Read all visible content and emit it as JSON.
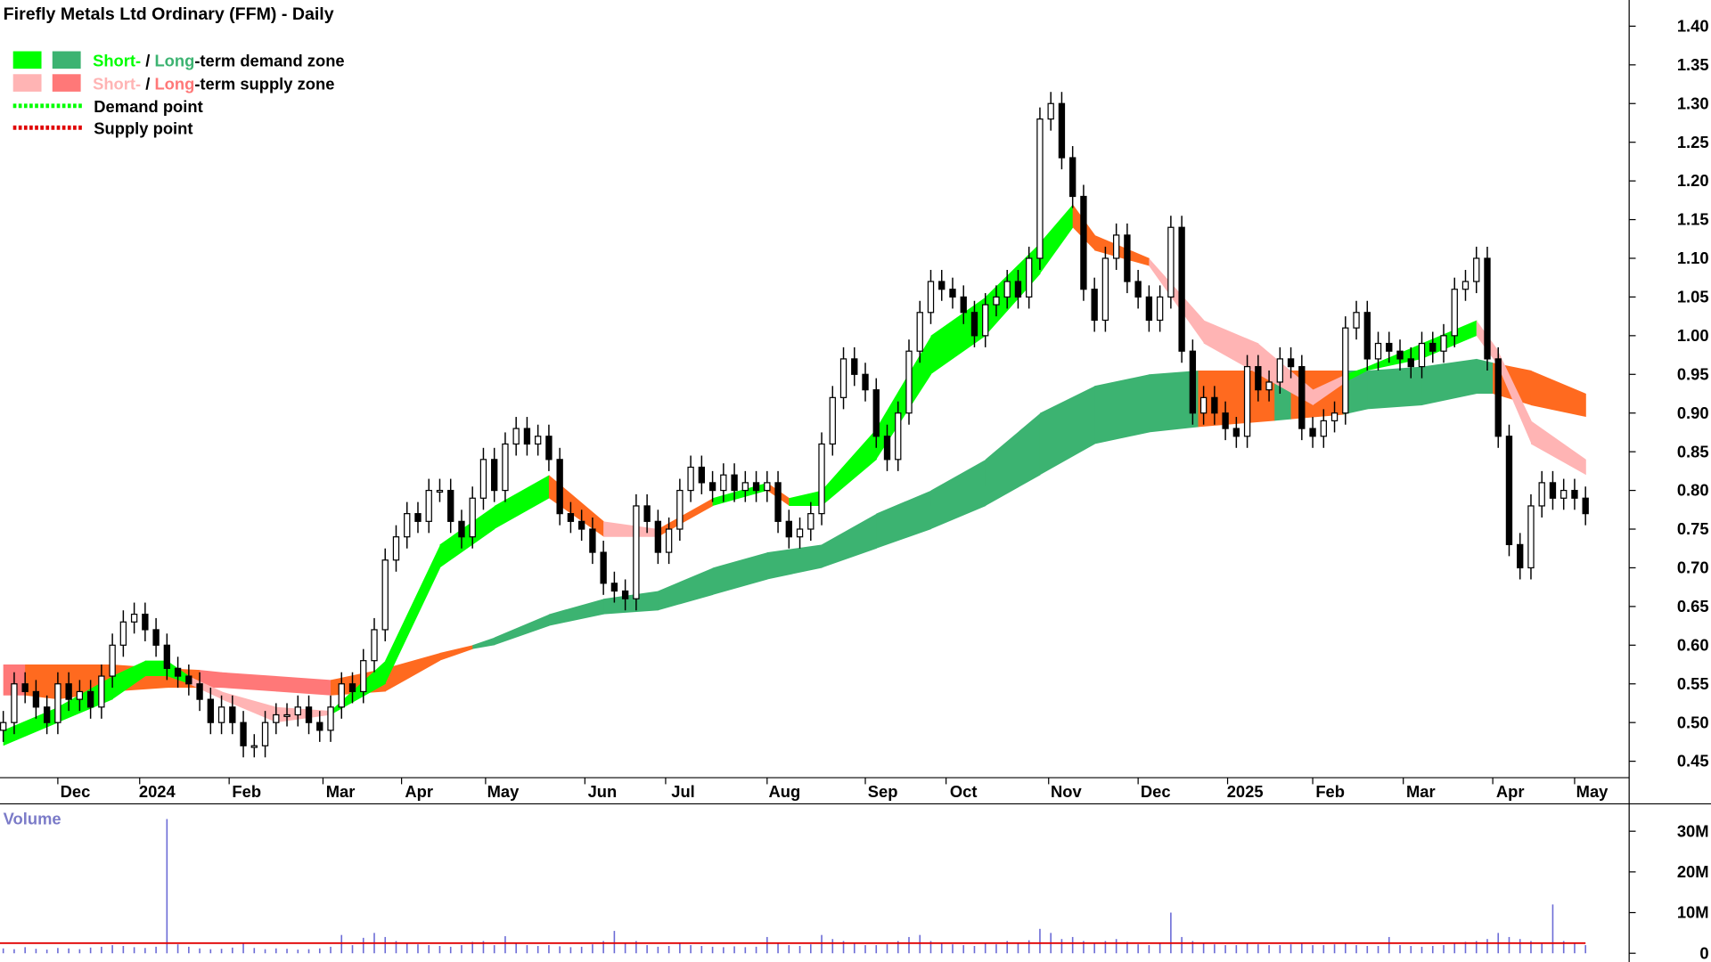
{
  "chart_data": {
    "type": "candlestick",
    "title": "Firefly Metals Ltd Ordinary (FFM) - Daily",
    "colors": {
      "demand_short": "#00ff00",
      "demand_long": "#3cb371",
      "supply_short": "#ffb4b4",
      "supply_long": "#ff7878",
      "overlap": "#ff6a1f",
      "volume_bar": "#6b6bd6",
      "volume_avg": "#e00000",
      "volume_label": "#7b7bc8"
    },
    "legend": {
      "demand_short": "Short-",
      "slash": " / ",
      "demand_long": "Long",
      "demand_rest": "-term demand zone",
      "supply_short": "Short-",
      "supply_long": "Long",
      "supply_rest": "-term supply zone",
      "demand_point": "Demand point",
      "supply_point": "Supply point"
    },
    "ylim": [
      0.43,
      1.41
    ],
    "y_ticks": [
      "1.40",
      "1.35",
      "1.30",
      "1.25",
      "1.20",
      "1.15",
      "1.10",
      "1.05",
      "1.00",
      "0.95",
      "0.90",
      "0.85",
      "0.80",
      "0.75",
      "0.70",
      "0.65",
      "0.60",
      "0.55",
      "0.50",
      "0.45"
    ],
    "x_ticks": [
      {
        "label": "Dec",
        "index": 5.0
      },
      {
        "label": "2024",
        "index": 12.5
      },
      {
        "label": "Feb",
        "index": 20.7
      },
      {
        "label": "Mar",
        "index": 29.3
      },
      {
        "label": "Apr",
        "index": 36.5
      },
      {
        "label": "May",
        "index": 44.2
      },
      {
        "label": "Jun",
        "index": 53.3
      },
      {
        "label": "Jul",
        "index": 60.7
      },
      {
        "label": "Aug",
        "index": 70.0
      },
      {
        "label": "Sep",
        "index": 79.0
      },
      {
        "label": "Oct",
        "index": 86.4
      },
      {
        "label": "Nov",
        "index": 95.8
      },
      {
        "label": "Dec",
        "index": 104.0
      },
      {
        "label": "2025",
        "index": 112.2
      },
      {
        "label": "Feb",
        "index": 120.0
      },
      {
        "label": "Mar",
        "index": 128.3
      },
      {
        "label": "Apr",
        "index": 136.5
      },
      {
        "label": "May",
        "index": 144.0
      }
    ],
    "close": [
      0.5,
      0.55,
      0.54,
      0.52,
      0.5,
      0.55,
      0.53,
      0.54,
      0.52,
      0.56,
      0.6,
      0.63,
      0.64,
      0.62,
      0.6,
      0.57,
      0.56,
      0.55,
      0.53,
      0.5,
      0.52,
      0.5,
      0.47,
      0.47,
      0.5,
      0.51,
      0.51,
      0.52,
      0.5,
      0.49,
      0.52,
      0.55,
      0.54,
      0.58,
      0.62,
      0.71,
      0.74,
      0.77,
      0.76,
      0.8,
      0.8,
      0.76,
      0.74,
      0.79,
      0.84,
      0.8,
      0.86,
      0.88,
      0.86,
      0.87,
      0.84,
      0.77,
      0.76,
      0.75,
      0.72,
      0.68,
      0.67,
      0.66,
      0.78,
      0.76,
      0.72,
      0.75,
      0.8,
      0.83,
      0.81,
      0.8,
      0.82,
      0.8,
      0.81,
      0.8,
      0.81,
      0.76,
      0.74,
      0.75,
      0.77,
      0.86,
      0.92,
      0.97,
      0.95,
      0.93,
      0.87,
      0.84,
      0.9,
      0.98,
      1.03,
      1.07,
      1.06,
      1.05,
      1.03,
      1.0,
      1.04,
      1.05,
      1.07,
      1.05,
      1.1,
      1.28,
      1.3,
      1.23,
      1.18,
      1.06,
      1.02,
      1.1,
      1.13,
      1.07,
      1.05,
      1.02,
      1.05,
      1.14,
      0.98,
      0.9,
      0.92,
      0.9,
      0.88,
      0.87,
      0.96,
      0.93,
      0.94,
      0.97,
      0.96,
      0.88,
      0.87,
      0.89,
      0.9,
      1.01,
      1.03,
      0.97,
      0.99,
      0.98,
      0.97,
      0.96,
      0.99,
      0.98,
      1.0,
      1.06,
      1.07,
      1.1,
      0.97,
      0.87,
      0.73,
      0.7,
      0.78,
      0.81,
      0.79,
      0.8,
      0.79,
      0.77
    ],
    "volume_m": [
      1.2,
      1.0,
      1.5,
      1.1,
      0.9,
      1.3,
      1.2,
      1.0,
      1.4,
      1.6,
      2.0,
      1.8,
      1.5,
      1.3,
      1.6,
      33.0,
      2.2,
      1.6,
      1.2,
      1.0,
      1.1,
      1.4,
      2.5,
      1.3,
      1.0,
      1.2,
      1.1,
      0.9,
      1.0,
      1.2,
      1.6,
      4.5,
      2.0,
      3.8,
      5.0,
      4.0,
      3.0,
      2.5,
      2.2,
      2.0,
      1.8,
      1.6,
      2.0,
      2.8,
      3.0,
      2.0,
      4.2,
      2.5,
      2.0,
      1.8,
      2.0,
      1.7,
      1.5,
      1.6,
      2.2,
      3.0,
      5.5,
      2.5,
      3.0,
      2.0,
      1.6,
      1.8,
      2.5,
      2.0,
      1.8,
      1.6,
      1.5,
      1.7,
      1.5,
      1.6,
      4.0,
      2.5,
      2.0,
      1.8,
      2.2,
      4.5,
      3.5,
      3.0,
      2.5,
      2.0,
      2.0,
      2.2,
      3.0,
      4.0,
      4.5,
      3.0,
      2.5,
      2.2,
      2.0,
      1.8,
      2.5,
      2.2,
      3.0,
      2.5,
      3.2,
      6.0,
      5.0,
      3.5,
      4.0,
      3.0,
      2.5,
      3.0,
      3.5,
      2.8,
      2.2,
      2.0,
      2.5,
      10.0,
      4.0,
      3.0,
      2.5,
      2.2,
      2.0,
      2.0,
      2.5,
      2.2,
      2.0,
      2.0,
      2.2,
      2.5,
      2.0,
      2.0,
      2.2,
      2.5,
      2.0,
      1.8,
      1.8,
      4.0,
      2.0,
      1.8,
      1.6,
      1.8,
      2.0,
      2.5,
      2.8,
      3.0,
      3.5,
      5.0,
      4.0,
      3.5,
      3.0,
      2.5,
      12.0,
      3.0,
      2.5,
      2.0
    ],
    "volume_avg_m": 2.5,
    "volume_label": "Volume",
    "volume_ticks": [
      "30M",
      "20M",
      "10M",
      "0"
    ],
    "long_zone": [
      {
        "i": 0,
        "hi": 0.575,
        "lo": 0.535,
        "state": "supply_long"
      },
      {
        "i": 2,
        "hi": 0.575,
        "lo": 0.535,
        "state": "overlap"
      },
      {
        "i": 5,
        "hi": 0.575,
        "lo": 0.53,
        "state": "overlap"
      },
      {
        "i": 10,
        "hi": 0.575,
        "lo": 0.54,
        "state": "overlap"
      },
      {
        "i": 15,
        "hi": 0.57,
        "lo": 0.545,
        "state": "overlap"
      },
      {
        "i": 18,
        "hi": 0.568,
        "lo": 0.545,
        "state": "supply_long"
      },
      {
        "i": 20,
        "hi": 0.565,
        "lo": 0.545,
        "state": "supply_long"
      },
      {
        "i": 25,
        "hi": 0.56,
        "lo": 0.54,
        "state": "supply_long"
      },
      {
        "i": 30,
        "hi": 0.555,
        "lo": 0.535,
        "state": "overlap"
      },
      {
        "i": 35,
        "hi": 0.57,
        "lo": 0.54,
        "state": "overlap"
      },
      {
        "i": 40,
        "hi": 0.59,
        "lo": 0.58,
        "state": "overlap"
      },
      {
        "i": 43,
        "hi": 0.6,
        "lo": 0.595,
        "state": "demand_long"
      },
      {
        "i": 45,
        "hi": 0.61,
        "lo": 0.6,
        "state": "demand_long"
      },
      {
        "i": 50,
        "hi": 0.64,
        "lo": 0.625,
        "state": "demand_long"
      },
      {
        "i": 55,
        "hi": 0.66,
        "lo": 0.64,
        "state": "demand_long"
      },
      {
        "i": 60,
        "hi": 0.67,
        "lo": 0.645,
        "state": "demand_long"
      },
      {
        "i": 65,
        "hi": 0.7,
        "lo": 0.665,
        "state": "demand_long"
      },
      {
        "i": 70,
        "hi": 0.72,
        "lo": 0.685,
        "state": "demand_long"
      },
      {
        "i": 75,
        "hi": 0.73,
        "lo": 0.7,
        "state": "demand_long"
      },
      {
        "i": 80,
        "hi": 0.77,
        "lo": 0.725,
        "state": "demand_long"
      },
      {
        "i": 85,
        "hi": 0.8,
        "lo": 0.75,
        "state": "demand_long"
      },
      {
        "i": 90,
        "hi": 0.84,
        "lo": 0.78,
        "state": "demand_long"
      },
      {
        "i": 95,
        "hi": 0.9,
        "lo": 0.82,
        "state": "demand_long"
      },
      {
        "i": 100,
        "hi": 0.935,
        "lo": 0.86,
        "state": "demand_long"
      },
      {
        "i": 105,
        "hi": 0.95,
        "lo": 0.875,
        "state": "demand_long"
      },
      {
        "i": 109.5,
        "hi": 0.955,
        "lo": 0.882,
        "state": "overlap"
      },
      {
        "i": 116.5,
        "hi": 0.955,
        "lo": 0.89,
        "state": "demand_long"
      },
      {
        "i": 118,
        "hi": 0.955,
        "lo": 0.892,
        "state": "overlap"
      },
      {
        "i": 122.8,
        "hi": 0.955,
        "lo": 0.898,
        "state": "demand_long"
      },
      {
        "i": 125,
        "hi": 0.955,
        "lo": 0.905,
        "state": "demand_long"
      },
      {
        "i": 130,
        "hi": 0.96,
        "lo": 0.91,
        "state": "demand_long"
      },
      {
        "i": 135,
        "hi": 0.97,
        "lo": 0.925,
        "state": "demand_long"
      },
      {
        "i": 136.5,
        "hi": 0.965,
        "lo": 0.925,
        "state": "overlap"
      },
      {
        "i": 140,
        "hi": 0.955,
        "lo": 0.91,
        "state": "overlap"
      },
      {
        "i": 145,
        "hi": 0.925,
        "lo": 0.895,
        "state": "overlap"
      }
    ],
    "short_zone": [
      {
        "i": 0,
        "hi": 0.49,
        "lo": 0.47,
        "state": "demand_short"
      },
      {
        "i": 5,
        "hi": 0.52,
        "lo": 0.5,
        "state": "demand_short"
      },
      {
        "i": 10,
        "hi": 0.56,
        "lo": 0.53,
        "state": "demand_short"
      },
      {
        "i": 13,
        "hi": 0.58,
        "lo": 0.56,
        "state": "demand_short"
      },
      {
        "i": 15,
        "hi": 0.58,
        "lo": 0.56,
        "state": "demand_short"
      },
      {
        "i": 17,
        "hi": 0.56,
        "lo": 0.55,
        "state": "supply_short"
      },
      {
        "i": 20,
        "hi": 0.54,
        "lo": 0.53,
        "state": "supply_short"
      },
      {
        "i": 25,
        "hi": 0.52,
        "lo": 0.5,
        "state": "supply_short"
      },
      {
        "i": 30,
        "hi": 0.515,
        "lo": 0.51,
        "state": "demand_short"
      },
      {
        "i": 35,
        "hi": 0.58,
        "lo": 0.55,
        "state": "demand_short"
      },
      {
        "i": 40,
        "hi": 0.73,
        "lo": 0.7,
        "state": "demand_short"
      },
      {
        "i": 45,
        "hi": 0.78,
        "lo": 0.75,
        "state": "demand_short"
      },
      {
        "i": 50,
        "hi": 0.82,
        "lo": 0.79,
        "state": "overlap"
      },
      {
        "i": 55,
        "hi": 0.76,
        "lo": 0.74,
        "state": "supply_short"
      },
      {
        "i": 60,
        "hi": 0.75,
        "lo": 0.74,
        "state": "overlap"
      },
      {
        "i": 65,
        "hi": 0.79,
        "lo": 0.78,
        "state": "demand_short"
      },
      {
        "i": 70,
        "hi": 0.81,
        "lo": 0.8,
        "state": "overlap"
      },
      {
        "i": 72,
        "hi": 0.79,
        "lo": 0.78,
        "state": "demand_short"
      },
      {
        "i": 75,
        "hi": 0.8,
        "lo": 0.78,
        "state": "demand_short"
      },
      {
        "i": 80,
        "hi": 0.88,
        "lo": 0.84,
        "state": "demand_short"
      },
      {
        "i": 85,
        "hi": 1.0,
        "lo": 0.95,
        "state": "demand_short"
      },
      {
        "i": 90,
        "hi": 1.05,
        "lo": 1.0,
        "state": "demand_short"
      },
      {
        "i": 95,
        "hi": 1.12,
        "lo": 1.08,
        "state": "demand_short"
      },
      {
        "i": 98,
        "hi": 1.17,
        "lo": 1.14,
        "state": "overlap"
      },
      {
        "i": 100,
        "hi": 1.13,
        "lo": 1.11,
        "state": "overlap"
      },
      {
        "i": 105,
        "hi": 1.1,
        "lo": 1.09,
        "state": "supply_short"
      },
      {
        "i": 110,
        "hi": 1.02,
        "lo": 0.99,
        "state": "supply_short"
      },
      {
        "i": 115,
        "hi": 0.99,
        "lo": 0.95,
        "state": "supply_short"
      },
      {
        "i": 120,
        "hi": 0.93,
        "lo": 0.91,
        "state": "supply_short"
      },
      {
        "i": 123,
        "hi": 0.95,
        "lo": 0.94,
        "state": "demand_short"
      },
      {
        "i": 125,
        "hi": 0.96,
        "lo": 0.955,
        "state": "demand_short"
      },
      {
        "i": 130,
        "hi": 0.99,
        "lo": 0.97,
        "state": "demand_short"
      },
      {
        "i": 135,
        "hi": 1.02,
        "lo": 1.0,
        "state": "supply_short"
      },
      {
        "i": 137,
        "hi": 0.98,
        "lo": 0.96,
        "state": "supply_short"
      },
      {
        "i": 140,
        "hi": 0.89,
        "lo": 0.86,
        "state": "supply_short"
      },
      {
        "i": 145,
        "hi": 0.84,
        "lo": 0.82,
        "state": "supply_short"
      }
    ]
  }
}
